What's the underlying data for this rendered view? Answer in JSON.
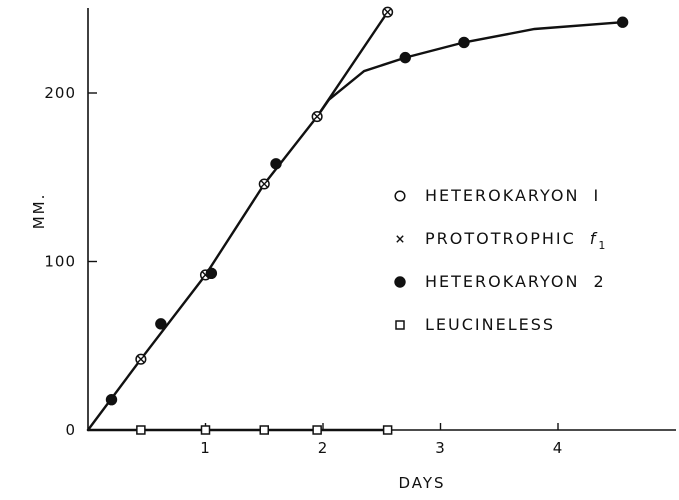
{
  "chart_data": {
    "type": "line",
    "xlabel": "DAYS",
    "ylabel": "MM.",
    "xlim": [
      0,
      4.8
    ],
    "ylim": [
      0,
      260
    ],
    "xticks": [
      1,
      2,
      3,
      4
    ],
    "xtick_labels": [
      "1",
      "2",
      "3",
      "4"
    ],
    "yticks": [
      0,
      100,
      200
    ],
    "ytick_labels": [
      "0",
      "100",
      "200"
    ],
    "legend_position": "center-right",
    "series": [
      {
        "name": "HETEROKARYON I",
        "legend_label": "HETEROKARYON",
        "legend_suffix": "I",
        "marker": "open-circle",
        "x": [
          0.45,
          1.0,
          1.5,
          1.95,
          2.55
        ],
        "y": [
          42,
          92,
          146,
          186,
          248
        ]
      },
      {
        "name": "PROTOTROPHIC f1",
        "legend_label": "PROTOTROPHIC",
        "legend_suffix": "f",
        "legend_subscript": "1",
        "marker": "cross",
        "x": [
          0.45,
          1.0,
          1.5,
          1.95,
          2.55
        ],
        "y": [
          42,
          92,
          146,
          186,
          248
        ]
      },
      {
        "name": "HETEROKARYON 2",
        "legend_label": "HETEROKARYON",
        "legend_suffix": "2",
        "marker": "filled-circle",
        "x": [
          0.2,
          0.62,
          1.05,
          1.6,
          2.7,
          3.2,
          4.55
        ],
        "y": [
          18,
          63,
          93,
          158,
          221,
          230,
          242
        ]
      },
      {
        "name": "LEUCINELESS",
        "legend_label": "LEUCINELESS",
        "marker": "open-square",
        "x": [
          0.45,
          1.0,
          1.5,
          1.95,
          2.55
        ],
        "y": [
          0,
          0,
          0,
          0,
          0
        ]
      }
    ],
    "curves": [
      {
        "name": "shared-growth-curve",
        "x": [
          0.0,
          0.45,
          1.0,
          1.5,
          1.95,
          2.05
        ],
        "y": [
          0,
          42,
          92,
          146,
          186,
          196
        ]
      },
      {
        "name": "heterokaryon-1-branch",
        "x": [
          1.95,
          2.55
        ],
        "y": [
          186,
          248
        ]
      },
      {
        "name": "heterokaryon-2-branch",
        "x": [
          2.05,
          2.35,
          2.7,
          3.2,
          3.8,
          4.55
        ],
        "y": [
          196,
          213,
          221,
          230,
          238,
          242
        ]
      },
      {
        "name": "leucineless-curve",
        "x": [
          0.0,
          2.55
        ],
        "y": [
          0,
          0
        ]
      }
    ]
  }
}
